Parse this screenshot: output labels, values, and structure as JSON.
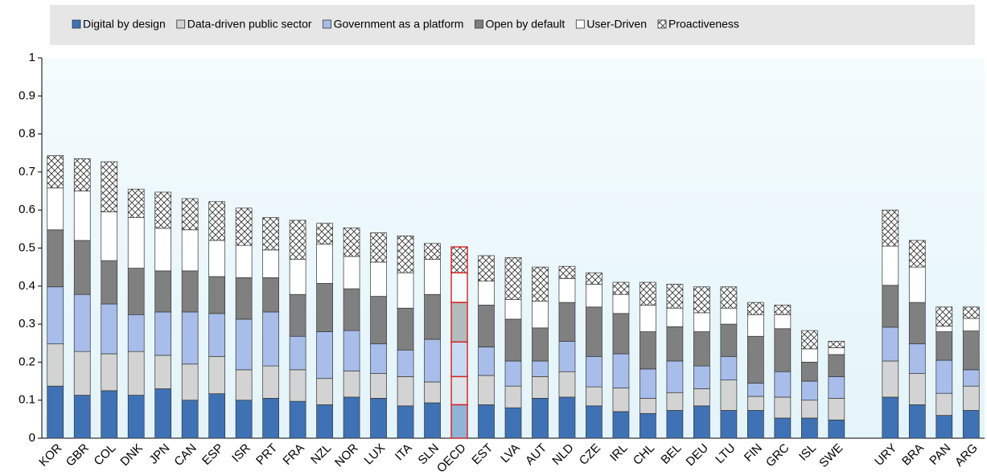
{
  "chart_data": {
    "type": "stacked_bar",
    "categories": [
      "KOR",
      "GBR",
      "COL",
      "DNK",
      "JPN",
      "CAN",
      "ESP",
      "ISR",
      "PRT",
      "FRA",
      "NZL",
      "NOR",
      "LUX",
      "ITA",
      "SLN",
      "OECD",
      "EST",
      "LVA",
      "AUT",
      "NLD",
      "CZE",
      "IRL",
      "CHL",
      "BEL",
      "DEU",
      "LTU",
      "FIN",
      "GRC",
      "ISL",
      "SWE",
      null,
      "URY",
      "BRA",
      "PAN",
      "ARG"
    ],
    "highlight": "OECD",
    "series": [
      {
        "name": "Digital by design",
        "color": "#3f72b5",
        "values": [
          0.137,
          0.113,
          0.125,
          0.113,
          0.13,
          0.1,
          0.117,
          0.1,
          0.105,
          0.097,
          0.088,
          0.108,
          0.105,
          0.085,
          0.093,
          0.088,
          0.088,
          0.08,
          0.105,
          0.108,
          0.085,
          0.07,
          0.065,
          0.073,
          0.085,
          0.073,
          0.073,
          0.053,
          0.053,
          0.048,
          null,
          0.108,
          0.088,
          0.06,
          0.073
        ]
      },
      {
        "name": "Data-driven public sector",
        "color": "#d3d3d3",
        "values": [
          0.111,
          0.115,
          0.097,
          0.115,
          0.088,
          0.095,
          0.098,
          0.08,
          0.085,
          0.083,
          0.069,
          0.069,
          0.065,
          0.077,
          0.055,
          0.074,
          0.077,
          0.057,
          0.057,
          0.067,
          0.05,
          0.062,
          0.04,
          0.047,
          0.045,
          0.08,
          0.037,
          0.055,
          0.047,
          0.057,
          null,
          0.095,
          0.082,
          0.058,
          0.064
        ]
      },
      {
        "name": "Government as a platform",
        "color": "#a8bdea",
        "values": [
          0.15,
          0.15,
          0.131,
          0.097,
          0.114,
          0.137,
          0.113,
          0.133,
          0.142,
          0.088,
          0.123,
          0.106,
          0.078,
          0.07,
          0.112,
          0.091,
          0.075,
          0.066,
          0.041,
          0.08,
          0.08,
          0.09,
          0.077,
          0.083,
          0.06,
          0.062,
          0.035,
          0.067,
          0.05,
          0.057,
          null,
          0.089,
          0.078,
          0.087,
          0.043
        ]
      },
      {
        "name": "Open by default",
        "color": "#808080",
        "values": [
          0.15,
          0.142,
          0.114,
          0.122,
          0.108,
          0.108,
          0.097,
          0.109,
          0.09,
          0.11,
          0.127,
          0.11,
          0.125,
          0.11,
          0.118,
          0.104,
          0.11,
          0.11,
          0.087,
          0.102,
          0.13,
          0.106,
          0.098,
          0.09,
          0.09,
          0.085,
          0.123,
          0.113,
          0.05,
          0.058,
          null,
          0.11,
          0.109,
          0.075,
          0.102
        ]
      },
      {
        "name": "User-Driven",
        "color": "#ffffff",
        "values": [
          0.11,
          0.13,
          0.128,
          0.133,
          0.112,
          0.108,
          0.095,
          0.085,
          0.073,
          0.092,
          0.103,
          0.085,
          0.09,
          0.093,
          0.092,
          0.078,
          0.063,
          0.052,
          0.07,
          0.063,
          0.06,
          0.05,
          0.07,
          0.049,
          0.05,
          0.042,
          0.057,
          0.037,
          0.035,
          0.018,
          null,
          0.103,
          0.093,
          0.015,
          0.033
        ]
      },
      {
        "name": "Proactiveness",
        "color": "#ffffff",
        "pattern": "crosshatch",
        "values": [
          0.085,
          0.085,
          0.132,
          0.075,
          0.095,
          0.082,
          0.102,
          0.098,
          0.085,
          0.103,
          0.055,
          0.075,
          0.077,
          0.097,
          0.042,
          0.068,
          0.067,
          0.11,
          0.09,
          0.032,
          0.03,
          0.032,
          0.06,
          0.063,
          0.068,
          0.056,
          0.032,
          0.025,
          0.048,
          0.017,
          null,
          0.095,
          0.07,
          0.05,
          0.03
        ]
      }
    ],
    "ylim": [
      0,
      1
    ],
    "yticks": [
      0,
      0.1,
      0.2,
      0.3,
      0.4,
      0.5,
      0.6,
      0.7,
      0.8,
      0.9,
      1
    ],
    "legend": "top"
  }
}
